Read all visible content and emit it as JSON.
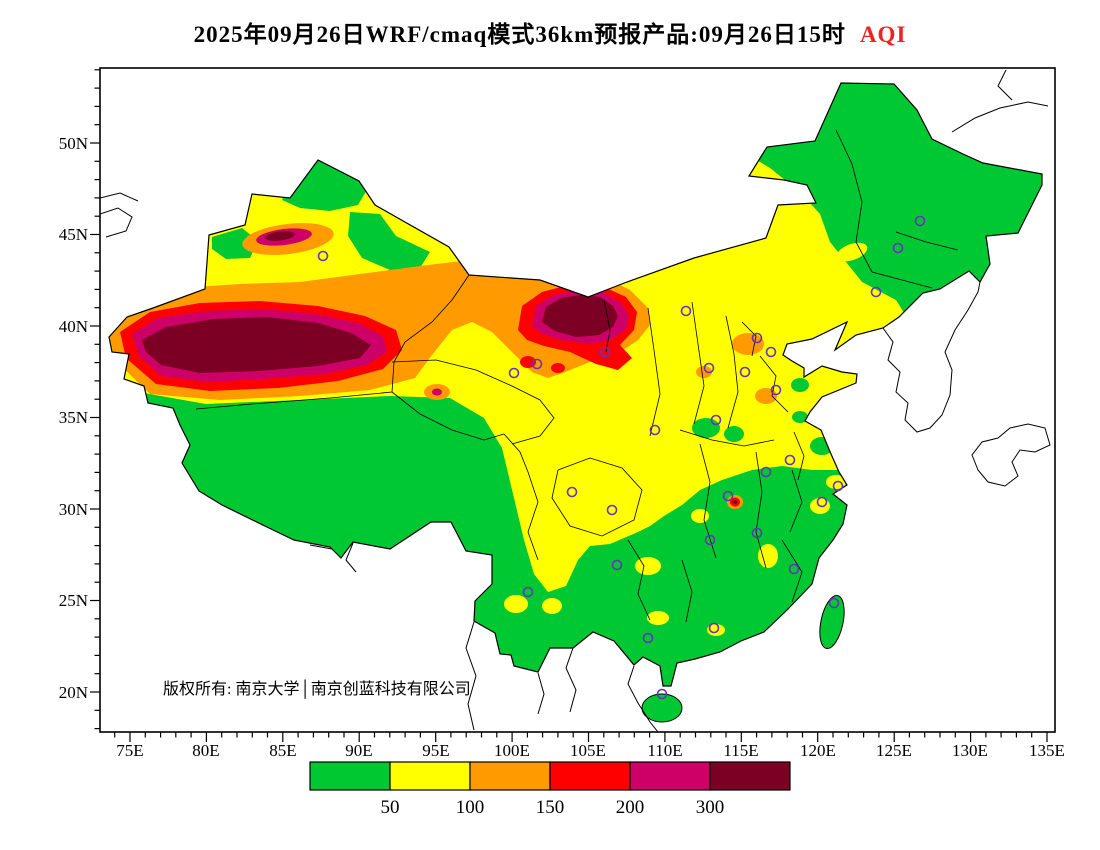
{
  "title": {
    "main": "2025年09月26日WRF/cmaq模式36km预报产品:09月26日15时",
    "aqi": "AQI",
    "aqi_color": "#ee2222"
  },
  "axes": {
    "x_ticks": [
      "75E",
      "80E",
      "85E",
      "90E",
      "95E",
      "100E",
      "105E",
      "110E",
      "115E",
      "120E",
      "125E",
      "130E",
      "135E"
    ],
    "y_ticks": [
      "50N",
      "45N",
      "40N",
      "35N",
      "30N",
      "25N",
      "20N"
    ]
  },
  "watermark": "版权所有: 南京大学│南京创蓝科技有限公司",
  "colorbar": {
    "labels": [
      "50",
      "100",
      "150",
      "200",
      "300"
    ],
    "colors": [
      "#00c832",
      "#ffff00",
      "#ff9a00",
      "#ff0000",
      "#cc0066",
      "#7b0023"
    ]
  },
  "map": {
    "marker_color": "#6633bb"
  },
  "chart_data": {
    "type": "heatmap",
    "variable": "AQI",
    "model": "WRF/cmaq",
    "resolution": "36km",
    "forecast_date": "2025年09月26日",
    "valid_time": "09月26日15时",
    "levels": [
      50,
      100,
      150,
      200,
      300
    ],
    "level_colors": [
      "#00c832",
      "#ffff00",
      "#ff9a00",
      "#ff0000",
      "#cc0066",
      "#7b0023"
    ],
    "x_axis_ticks": [
      "75E",
      "80E",
      "85E",
      "90E",
      "95E",
      "100E",
      "105E",
      "110E",
      "115E",
      "120E",
      "125E",
      "130E",
      "135E"
    ],
    "y_axis_ticks": [
      "50N",
      "45N",
      "40N",
      "35N",
      "30N",
      "25N",
      "20N"
    ],
    "x_range_deg_east": [
      73,
      135.5
    ],
    "y_range_deg_north": [
      17.8,
      54.1
    ]
  }
}
